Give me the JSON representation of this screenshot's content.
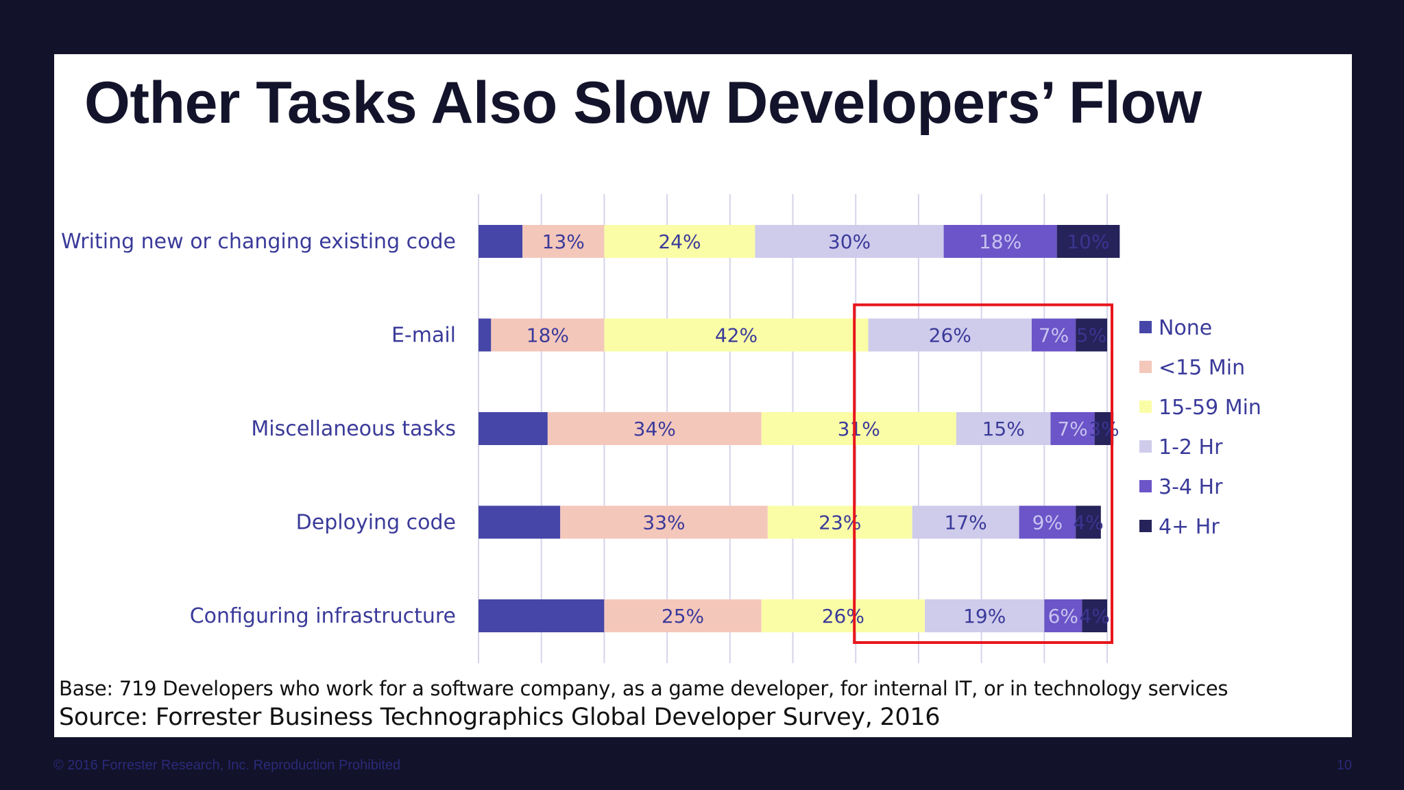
{
  "slide": {
    "title": "Other Tasks Also Slow Developers’ Flow",
    "base_note": "Base: 719 Developers who work for a software company, as a game developer, for internal IT, or in technology services",
    "source_note": "Source: Forrester Business Technographics Global Developer Survey, 2016"
  },
  "footer": {
    "copyright": "© 2016 Forrester Research, Inc. Reproduction Prohibited",
    "page_number": "10"
  },
  "chart_data": {
    "type": "bar",
    "orientation": "horizontal",
    "stacked": true,
    "percent_stacked": true,
    "grid": true,
    "legend_placement": "right",
    "categories": [
      "Writing new or changing existing code",
      "E-mail",
      "Miscellaneous tasks",
      "Deploying code",
      "Configuring infrastructure"
    ],
    "series": [
      {
        "name": "None",
        "color": "#4646a8",
        "values": [
          7,
          2,
          11,
          13,
          20
        ]
      },
      {
        "name": "<15 Min",
        "color": "#f4c7bb",
        "values": [
          13,
          18,
          34,
          33,
          25
        ]
      },
      {
        "name": "15-59 Min",
        "color": "#fafda6",
        "values": [
          24,
          42,
          31,
          23,
          26
        ]
      },
      {
        "name": "1-2 Hr",
        "color": "#cfcbeb",
        "values": [
          30,
          26,
          15,
          17,
          19
        ]
      },
      {
        "name": "3-4 Hr",
        "color": "#6b55c8",
        "values": [
          18,
          7,
          7,
          9,
          6
        ]
      },
      {
        "name": "4+ Hr",
        "color": "#26225a",
        "values": [
          10,
          5,
          3,
          4,
          4
        ]
      }
    ],
    "data_labels": [
      [
        "",
        "13%",
        "24%",
        "30%",
        "18%",
        "10%"
      ],
      [
        "",
        "18%",
        "42%",
        "26%",
        "7%",
        "5%"
      ],
      [
        "",
        "34%",
        "31%",
        "15%",
        "7%",
        "3%"
      ],
      [
        "",
        "33%",
        "23%",
        "17%",
        "9%",
        "4%"
      ],
      [
        "",
        "25%",
        "26%",
        "19%",
        "6%",
        "4%"
      ]
    ],
    "highlight": {
      "color": "#e8151c",
      "from_value": 60,
      "to_value": 100,
      "rows": [
        1,
        4
      ]
    }
  }
}
